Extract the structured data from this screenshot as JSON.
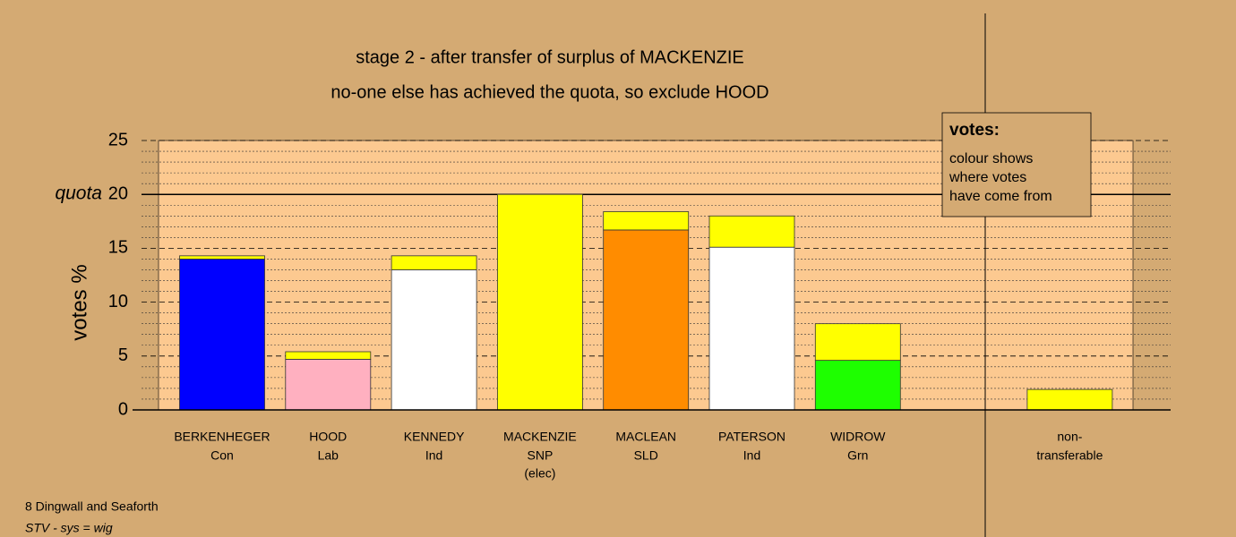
{
  "chart_data": {
    "type": "stacked_bar",
    "title": "stage 2 - after transfer of surplus of MACKENZIE",
    "subtitle": "no-one else has achieved the quota, so exclude HOOD",
    "y_label": "votes %",
    "quota_label": "quota",
    "quota": 20,
    "categories": [
      "BERKENHEGER",
      "HOOD",
      "KENNEDY",
      "MACKENZIE",
      "MACLEAN",
      "PATERSON",
      "WIDROW",
      null,
      "non-"
    ],
    "parties": [
      "Con",
      "Lab",
      "Ind",
      "SNP",
      "SLD",
      "Ind",
      "Grn",
      null,
      "transferable"
    ],
    "status": [
      null,
      null,
      null,
      "(elec)",
      null,
      null,
      null,
      null,
      null
    ],
    "series": [
      {
        "color": "#0000ff",
        "values": [
          14.0,
          null,
          null,
          null,
          null,
          null,
          null,
          null,
          null
        ]
      },
      {
        "color": "#ffb0c0",
        "values": [
          null,
          4.7,
          null,
          null,
          null,
          null,
          null,
          null,
          null
        ]
      },
      {
        "color": "#ffffff",
        "values": [
          null,
          null,
          13.0,
          null,
          null,
          15.1,
          null,
          null,
          null
        ]
      },
      {
        "color": "#ff8c00",
        "values": [
          null,
          null,
          null,
          null,
          16.7,
          null,
          null,
          null,
          null
        ]
      },
      {
        "color": "#1eff00",
        "values": [
          null,
          null,
          null,
          null,
          null,
          null,
          4.6,
          null,
          null
        ]
      },
      {
        "color": "#ffff00",
        "values": [
          0.3,
          0.7,
          1.3,
          20,
          1.7,
          2.9,
          3.4,
          null,
          1.9
        ]
      }
    ],
    "ylim": [
      0,
      25
    ],
    "yticks": [
      0,
      5,
      10,
      15,
      20,
      25
    ],
    "minor_yticks": [
      1,
      2,
      3,
      4,
      6,
      7,
      8,
      9,
      11,
      12,
      13,
      14,
      16,
      17,
      18,
      19,
      21,
      22,
      23,
      24
    ],
    "legend": {
      "title": "votes:",
      "lines": [
        "colour shows",
        "where votes",
        "have come from"
      ]
    },
    "footer": [
      "8 Dingwall and Seaforth",
      "STV - sys = wig"
    ]
  }
}
